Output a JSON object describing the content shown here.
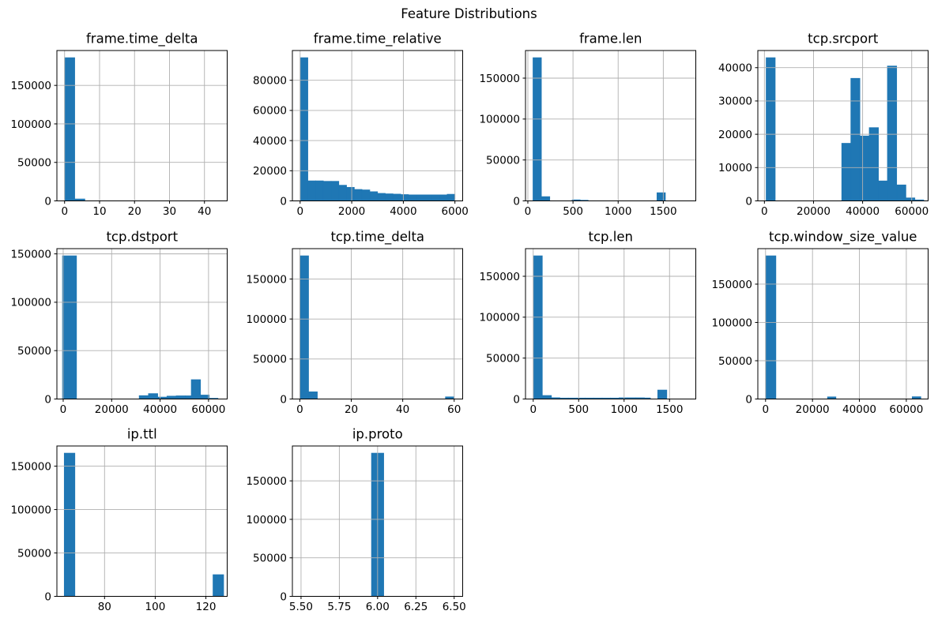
{
  "figure_title": "Feature Distributions",
  "style": {
    "bar_color": "#1f77b4",
    "grid_color": "#b0b0b0",
    "spine_color": "#000000"
  },
  "chart_data": [
    {
      "type": "bar",
      "title": "frame.time_delta",
      "xlim": [
        -2.2,
        46.5
      ],
      "ylim": [
        0,
        195300
      ],
      "xtick_values": [
        0,
        10,
        20,
        30,
        40
      ],
      "xtick_labels": [
        "0",
        "10",
        "20",
        "30",
        "40"
      ],
      "ytick_values": [
        0,
        50000,
        100000,
        150000
      ],
      "ytick_labels": [
        "0",
        "50000",
        "100000",
        "150000"
      ],
      "bars": [
        [
          0,
          2.9,
          186000
        ],
        [
          2.9,
          5.8,
          2500
        ]
      ]
    },
    {
      "type": "bar",
      "title": "frame.time_relative",
      "xlim": [
        -300,
        6300
      ],
      "ylim": [
        0,
        99750
      ],
      "xtick_values": [
        0,
        2000,
        4000,
        6000
      ],
      "xtick_labels": [
        "0",
        "2000",
        "4000",
        "6000"
      ],
      "ytick_values": [
        0,
        20000,
        40000,
        60000,
        80000
      ],
      "ytick_labels": [
        "0",
        "20000",
        "40000",
        "60000",
        "80000"
      ],
      "bars": [
        [
          0,
          300,
          95000
        ],
        [
          300,
          600,
          13300
        ],
        [
          600,
          900,
          13300
        ],
        [
          900,
          1200,
          13000
        ],
        [
          1200,
          1500,
          13000
        ],
        [
          1500,
          1800,
          10400
        ],
        [
          1800,
          2100,
          9000
        ],
        [
          2100,
          2400,
          7600
        ],
        [
          2400,
          2700,
          7300
        ],
        [
          2700,
          3000,
          6100
        ],
        [
          3000,
          3300,
          5000
        ],
        [
          3300,
          3600,
          4700
        ],
        [
          3600,
          3900,
          4500
        ],
        [
          3900,
          4200,
          4200
        ],
        [
          4200,
          4500,
          4000
        ],
        [
          4500,
          4800,
          4000
        ],
        [
          4800,
          5100,
          4000
        ],
        [
          5100,
          5400,
          4000
        ],
        [
          5400,
          5700,
          4000
        ],
        [
          5700,
          6000,
          4400
        ]
      ]
    },
    {
      "type": "bar",
      "title": "frame.len",
      "xlim": [
        -26,
        1860
      ],
      "ylim": [
        0,
        183750
      ],
      "xtick_values": [
        0,
        500,
        1000,
        1500
      ],
      "xtick_labels": [
        "0",
        "500",
        "1000",
        "1500"
      ],
      "ytick_values": [
        0,
        50000,
        100000,
        150000
      ],
      "ytick_labels": [
        "0",
        "50000",
        "100000",
        "150000"
      ],
      "bars": [
        [
          57,
          150,
          175000
        ],
        [
          150,
          243,
          5200
        ],
        [
          490,
          580,
          1300
        ],
        [
          580,
          668,
          800
        ],
        [
          1430,
          1523,
          10000
        ]
      ]
    },
    {
      "type": "bar",
      "title": "tcp.srcport",
      "xlim": [
        -2680,
        66680
      ],
      "ylim": [
        0,
        45150
      ],
      "xtick_values": [
        0,
        20000,
        40000,
        60000
      ],
      "xtick_labels": [
        "0",
        "20000",
        "40000",
        "60000"
      ],
      "ytick_values": [
        0,
        10000,
        20000,
        30000,
        40000
      ],
      "ytick_labels": [
        "0",
        "10000",
        "20000",
        "30000",
        "40000"
      ],
      "bars": [
        [
          700,
          4400,
          43000
        ],
        [
          31500,
          35200,
          17300
        ],
        [
          35200,
          38900,
          36800
        ],
        [
          38900,
          42700,
          19500
        ],
        [
          42700,
          46450,
          22000
        ],
        [
          46450,
          50100,
          6000
        ],
        [
          50100,
          53870,
          40500
        ],
        [
          53870,
          57630,
          4800
        ],
        [
          57630,
          61290,
          900
        ],
        [
          61290,
          64900,
          300
        ]
      ]
    },
    {
      "type": "bar",
      "title": "tcp.dstport",
      "xlim": [
        -2600,
        67700
      ],
      "ylim": [
        0,
        155400
      ],
      "xtick_values": [
        0,
        20000,
        40000,
        60000
      ],
      "xtick_labels": [
        "0",
        "20000",
        "40000",
        "60000"
      ],
      "ytick_values": [
        0,
        50000,
        100000,
        150000
      ],
      "ytick_labels": [
        "0",
        "50000",
        "100000",
        "150000"
      ],
      "bars": [
        [
          -300,
          5500,
          148000
        ],
        [
          31370,
          35200,
          3500
        ],
        [
          35200,
          39020,
          5600
        ],
        [
          39020,
          42830,
          2000
        ],
        [
          42830,
          46650,
          3000
        ],
        [
          46650,
          50470,
          3300
        ],
        [
          50470,
          52870,
          3300
        ],
        [
          52870,
          56690,
          20000
        ],
        [
          56690,
          60290,
          4100
        ],
        [
          60290,
          63890,
          800
        ]
      ]
    },
    {
      "type": "bar",
      "title": "tcp.time_delta",
      "xlim": [
        -2.9,
        63.3
      ],
      "ylim": [
        0,
        187950
      ],
      "xtick_values": [
        0,
        20,
        40,
        60
      ],
      "xtick_labels": [
        "0",
        "20",
        "40",
        "60"
      ],
      "ytick_values": [
        0,
        50000,
        100000,
        150000
      ],
      "ytick_labels": [
        "0",
        "50000",
        "100000",
        "150000"
      ],
      "bars": [
        [
          0,
          3.4,
          179000
        ],
        [
          3.4,
          6.8,
          9000
        ],
        [
          56.6,
          60,
          2700
        ]
      ]
    },
    {
      "type": "bar",
      "title": "tcp.len",
      "xlim": [
        -85,
        1789
      ],
      "ylim": [
        0,
        183750
      ],
      "xtick_values": [
        0,
        500,
        1000,
        1500
      ],
      "xtick_labels": [
        "0",
        "500",
        "1000",
        "1500"
      ],
      "ytick_values": [
        0,
        50000,
        100000,
        150000
      ],
      "ytick_labels": [
        "0",
        "50000",
        "100000",
        "150000"
      ],
      "bars": [
        [
          0,
          100,
          175000
        ],
        [
          100,
          200,
          4300
        ],
        [
          200,
          293,
          1600
        ],
        [
          293,
          386,
          1200
        ],
        [
          386,
          479,
          1200
        ],
        [
          479,
          572,
          1200
        ],
        [
          572,
          665,
          1200
        ],
        [
          665,
          758,
          1200
        ],
        [
          758,
          851,
          1200
        ],
        [
          851,
          944,
          1200
        ],
        [
          944,
          1037,
          1500
        ],
        [
          1037,
          1130,
          1500
        ],
        [
          1130,
          1223,
          1500
        ],
        [
          1223,
          1290,
          1300
        ],
        [
          1370,
          1470,
          11000
        ]
      ]
    },
    {
      "type": "bar",
      "title": "tcp.window_size_value",
      "xlim": [
        -3300,
        69300
      ],
      "ylim": [
        0,
        196350
      ],
      "xtick_values": [
        0,
        20000,
        40000,
        60000
      ],
      "xtick_labels": [
        "0",
        "20000",
        "40000",
        "60000"
      ],
      "ytick_values": [
        0,
        50000,
        100000,
        150000
      ],
      "ytick_labels": [
        "0",
        "50000",
        "100000",
        "150000"
      ],
      "bars": [
        [
          0,
          4400,
          187000
        ],
        [
          26400,
          30000,
          2800
        ],
        [
          62500,
          66200,
          3000
        ]
      ]
    },
    {
      "type": "bar",
      "title": "ip.ttl",
      "xlim": [
        61.2,
        128.4
      ],
      "ylim": [
        0,
        173250
      ],
      "xtick_values": [
        80,
        100,
        120
      ],
      "xtick_labels": [
        "80",
        "100",
        "120"
      ],
      "ytick_values": [
        0,
        50000,
        100000,
        150000
      ],
      "ytick_labels": [
        "0",
        "50000",
        "100000",
        "150000"
      ],
      "bars": [
        [
          64.1,
          68.3,
          165000
        ],
        [
          122.8,
          127.0,
          25000
        ]
      ]
    },
    {
      "type": "bar",
      "title": "ip.proto",
      "xlim": [
        5.4435,
        6.5556
      ],
      "ylim": [
        0,
        195300
      ],
      "xtick_values": [
        5.5,
        5.75,
        6.0,
        6.25,
        6.5
      ],
      "xtick_labels": [
        "5.50",
        "5.75",
        "6.00",
        "6.25",
        "6.50"
      ],
      "ytick_values": [
        0,
        50000,
        100000,
        150000
      ],
      "ytick_labels": [
        "0",
        "50000",
        "100000",
        "150000"
      ],
      "bars": [
        [
          5.96,
          6.04,
          186000
        ]
      ]
    }
  ]
}
